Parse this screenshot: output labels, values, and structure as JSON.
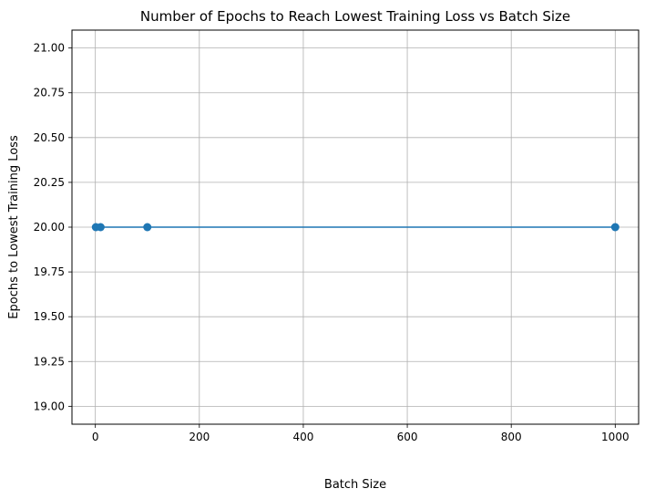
{
  "chart_data": {
    "type": "line",
    "title": "Number of Epochs to Reach Lowest Training Loss vs Batch Size",
    "xlabel": "Batch Size",
    "ylabel": "Epochs to Lowest Training Loss",
    "xlim": [
      -45,
      1045
    ],
    "ylim": [
      18.9,
      21.1
    ],
    "xticks": [
      0,
      200,
      400,
      600,
      800,
      1000
    ],
    "xtick_labels": [
      "0",
      "200",
      "400",
      "600",
      "800",
      "1000"
    ],
    "yticks": [
      19.0,
      19.25,
      19.5,
      19.75,
      20.0,
      20.25,
      20.5,
      20.75,
      21.0
    ],
    "ytick_labels": [
      "19.00",
      "19.25",
      "19.50",
      "19.75",
      "20.00",
      "20.25",
      "20.50",
      "20.75",
      "21.00"
    ],
    "grid": true,
    "series": [
      {
        "color": "#1f77b4",
        "marker": "circle",
        "x": [
          1,
          10,
          100,
          1000
        ],
        "y": [
          20,
          20,
          20,
          20
        ]
      }
    ]
  }
}
